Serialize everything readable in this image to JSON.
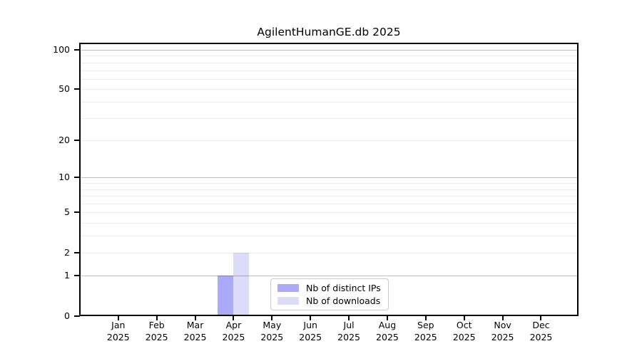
{
  "title": "AgilentHumanGE.db 2025",
  "chart_data": {
    "type": "bar",
    "title": "AgilentHumanGE.db 2025",
    "y_scale": "log1p",
    "categories": [
      "Jan",
      "Feb",
      "Mar",
      "Apr",
      "May",
      "Jun",
      "Jul",
      "Aug",
      "Sep",
      "Oct",
      "Nov",
      "Dec"
    ],
    "x_tick_line2": "2025",
    "series": [
      {
        "name": "Nb of distinct IPs",
        "color": "#aaaaf8",
        "values": [
          0,
          0,
          0,
          1,
          0,
          0,
          0,
          0,
          0,
          0,
          0,
          0
        ]
      },
      {
        "name": "Nb of downloads",
        "color": "#dcdcf8",
        "values": [
          0,
          0,
          0,
          2,
          0,
          0,
          0,
          0,
          0,
          0,
          0,
          0
        ]
      }
    ],
    "y_ticks": [
      0,
      1,
      2,
      5,
      10,
      20,
      50,
      100
    ],
    "major_gridlines": [
      1,
      10,
      100
    ],
    "minor_gridlines": [
      2,
      3,
      4,
      5,
      6,
      7,
      8,
      9,
      20,
      30,
      40,
      50,
      60,
      70,
      80,
      90
    ],
    "ylim": [
      0,
      110
    ],
    "xlabel": "",
    "ylabel": "",
    "grid": true,
    "legend": {
      "position": "lower center",
      "entries": [
        "Nb of distinct IPs",
        "Nb of downloads"
      ]
    }
  },
  "colors": {
    "background": "#ffffff",
    "axis": "#000000",
    "text": "#000000",
    "major_grid": "#bdbdbd",
    "minor_grid": "#ebebeb",
    "bar_distinct_ips": "#aaaaf8",
    "bar_downloads": "#dcdcf8",
    "legend_border": "#cccccc"
  }
}
